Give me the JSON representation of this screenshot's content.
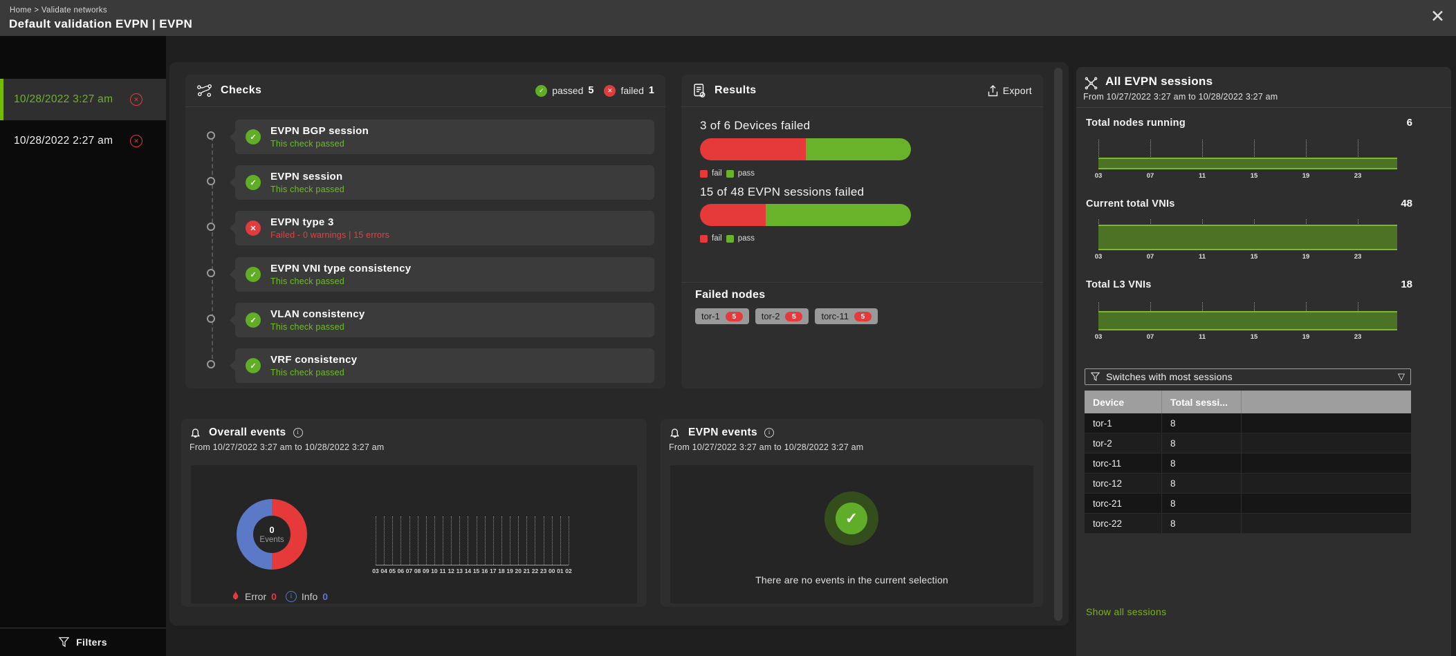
{
  "header": {
    "breadcrumb": "Home > Validate networks",
    "title": "Default validation EVPN | EVPN"
  },
  "sidebar": {
    "runs": [
      {
        "label": "10/28/2022 3:27 am",
        "selected": true
      },
      {
        "label": "10/28/2022 2:27 am",
        "selected": false
      }
    ],
    "filters_label": "Filters"
  },
  "checks": {
    "title": "Checks",
    "passed_label": "passed",
    "passed_count": "5",
    "failed_label": "failed",
    "failed_count": "1",
    "items": [
      {
        "name": "EVPN BGP session",
        "status": "This check passed",
        "state": "pass"
      },
      {
        "name": "EVPN session",
        "status": "This check passed",
        "state": "pass"
      },
      {
        "name": "EVPN type 3",
        "status": "Failed - 0 warnings | 15 errors",
        "state": "fail"
      },
      {
        "name": "EVPN VNI type consistency",
        "status": "This check passed",
        "state": "pass"
      },
      {
        "name": "VLAN consistency",
        "status": "This check passed",
        "state": "pass"
      },
      {
        "name": "VRF consistency",
        "status": "This check passed",
        "state": "pass"
      }
    ]
  },
  "results": {
    "title": "Results",
    "export_label": "Export",
    "legend_fail": "fail",
    "legend_pass": "pass",
    "summaries": [
      {
        "label": "3 of 6 Devices failed",
        "fail": 3,
        "total": 6
      },
      {
        "label": "15 of 48 EVPN sessions failed",
        "fail": 15,
        "total": 48
      }
    ],
    "failed_nodes_title": "Failed nodes",
    "failed_nodes": [
      {
        "name": "tor-1",
        "count": "5"
      },
      {
        "name": "tor-2",
        "count": "5"
      },
      {
        "name": "torc-11",
        "count": "5"
      }
    ]
  },
  "overall_events": {
    "title": "Overall events",
    "subtitle": "From 10/27/2022 3:27 am to 10/28/2022 3:27 am",
    "donut_count": "0",
    "donut_label": "Events",
    "hours": [
      "03",
      "04",
      "05",
      "06",
      "07",
      "08",
      "09",
      "10",
      "11",
      "12",
      "13",
      "14",
      "15",
      "16",
      "17",
      "18",
      "19",
      "20",
      "21",
      "22",
      "23",
      "00",
      "01",
      "02"
    ],
    "error_label": "Error",
    "error_count": "0",
    "info_label": "Info",
    "info_count": "0"
  },
  "evpn_events": {
    "title": "EVPN events",
    "subtitle": "From 10/27/2022 3:27 am to 10/28/2022 3:27 am",
    "empty_message": "There are no events in the current selection"
  },
  "sessions_panel": {
    "title": "All EVPN sessions",
    "subtitle": "From 10/27/2022 3:27 am to 10/28/2022 3:27 am",
    "metrics": [
      {
        "label": "Total nodes running",
        "value": "6"
      },
      {
        "label": "Current total VNIs",
        "value": "48"
      },
      {
        "label": "Total L3 VNIs",
        "value": "18"
      }
    ],
    "hours": [
      "03",
      "07",
      "11",
      "15",
      "19",
      "23"
    ],
    "filter_label": "Switches with most sessions",
    "table_columns": [
      "Device",
      "Total sessi..."
    ],
    "table_rows": [
      [
        "tor-1",
        "8"
      ],
      [
        "tor-2",
        "8"
      ],
      [
        "torc-11",
        "8"
      ],
      [
        "torc-12",
        "8"
      ],
      [
        "torc-21",
        "8"
      ],
      [
        "torc-22",
        "8"
      ]
    ],
    "show_all_label": "Show all sessions"
  },
  "colors": {
    "accent_green": "#76b900",
    "status_red": "#e5393a",
    "status_blue": "#5b79c7"
  },
  "chart_data": [
    {
      "type": "bar",
      "title": "3 of 6 Devices failed",
      "categories": [
        "fail",
        "pass"
      ],
      "values": [
        3,
        3
      ]
    },
    {
      "type": "bar",
      "title": "15 of 48 EVPN sessions failed",
      "categories": [
        "fail",
        "pass"
      ],
      "values": [
        15,
        33
      ]
    },
    {
      "type": "area",
      "title": "Total nodes running",
      "x": [
        "03",
        "07",
        "11",
        "15",
        "19",
        "23"
      ],
      "values": [
        6,
        6,
        6,
        6,
        6,
        6
      ]
    },
    {
      "type": "area",
      "title": "Current total VNIs",
      "x": [
        "03",
        "07",
        "11",
        "15",
        "19",
        "23"
      ],
      "values": [
        48,
        48,
        48,
        48,
        48,
        48
      ]
    },
    {
      "type": "area",
      "title": "Total L3 VNIs",
      "x": [
        "03",
        "07",
        "11",
        "15",
        "19",
        "23"
      ],
      "values": [
        18,
        18,
        18,
        18,
        18,
        18
      ]
    },
    {
      "type": "pie",
      "title": "Overall events",
      "categories": [
        "Error",
        "Info"
      ],
      "values": [
        0,
        0
      ]
    }
  ]
}
